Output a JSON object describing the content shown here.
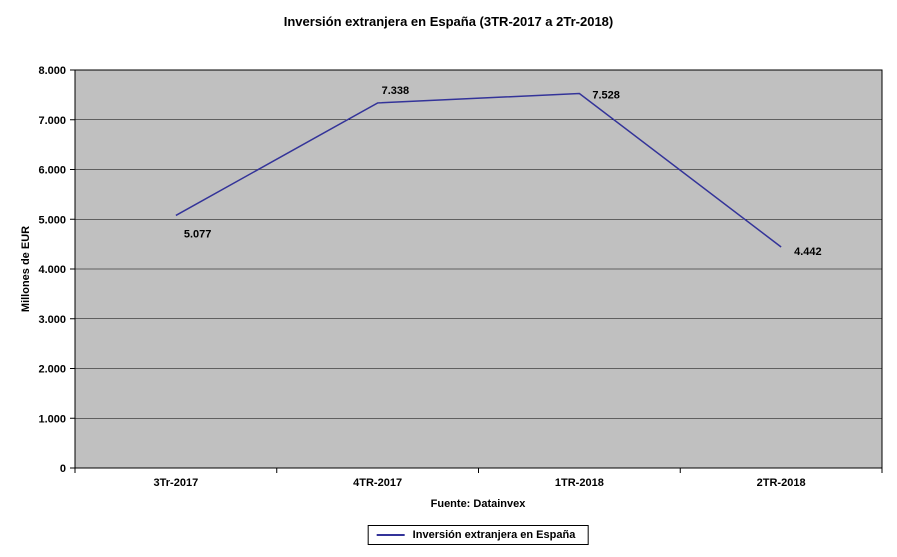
{
  "chart_data": {
    "type": "line",
    "title": "Inversión extranjera en España (3TR-2017 a 2Tr-2018)",
    "categories": [
      "3Tr-2017",
      "4TR-2017",
      "1TR-2018",
      "2TR-2018"
    ],
    "series": [
      {
        "name": "Inversión extranjera en España",
        "values": [
          5077,
          7338,
          7528,
          4442
        ]
      }
    ],
    "value_labels": [
      "5.077",
      "7.338",
      "7.528",
      "4.442"
    ],
    "xlabel": "Fuente: Datainvex",
    "ylabel": "Millones de EUR",
    "ylim": [
      0,
      8000
    ],
    "yticks": [
      0,
      1000,
      2000,
      3000,
      4000,
      5000,
      6000,
      7000,
      8000
    ],
    "ytick_labels": [
      "0",
      "1.000",
      "2.000",
      "3.000",
      "4.000",
      "5.000",
      "6.000",
      "7.000",
      "8.000"
    ],
    "grid": true,
    "legend": {
      "position": "bottom",
      "items": [
        "Inversión extranjera en España"
      ]
    },
    "colors": {
      "line": "#333399",
      "plot_bg": "#C0C0C0",
      "grid": "#000000",
      "text": "#000000",
      "page_bg": "#FFFFFF"
    }
  }
}
